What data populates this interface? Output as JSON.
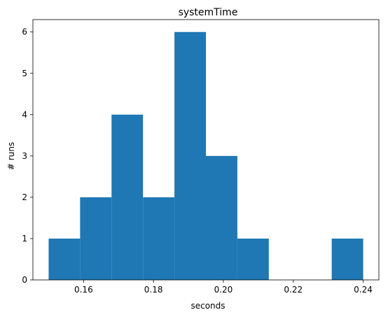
{
  "chart_data": {
    "type": "bar",
    "title": "systemTime",
    "xlabel": "seconds",
    "ylabel": "# runs",
    "bin_edges": [
      0.15,
      0.159,
      0.168,
      0.177,
      0.186,
      0.195,
      0.204,
      0.213,
      0.222,
      0.231,
      0.24
    ],
    "values": [
      1,
      2,
      4,
      2,
      6,
      3,
      1,
      0,
      0,
      1
    ],
    "xlim": [
      0.1455,
      0.2445
    ],
    "ylim": [
      0,
      6.3
    ],
    "xticks": [
      0.16,
      0.18,
      0.2,
      0.22,
      0.24
    ],
    "xtick_labels": [
      "0.16",
      "0.18",
      "0.20",
      "0.22",
      "0.24"
    ],
    "yticks": [
      0,
      1,
      2,
      3,
      4,
      5,
      6
    ],
    "ytick_labels": [
      "0",
      "1",
      "2",
      "3",
      "4",
      "5",
      "6"
    ],
    "bar_color": "#1f77b4",
    "grid": false,
    "legend": false
  }
}
